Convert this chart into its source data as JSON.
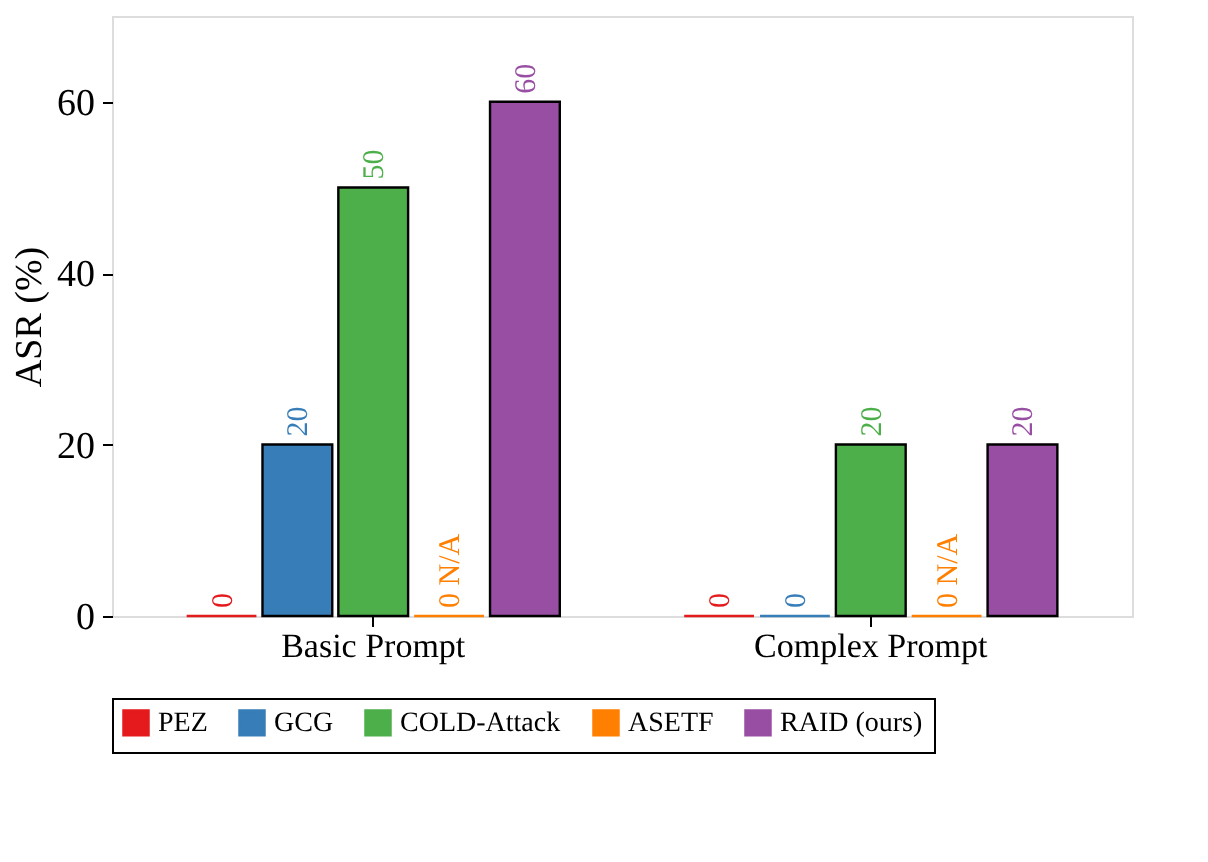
{
  "chart_data": {
    "type": "bar",
    "ylabel": "ASR (%)",
    "categories": [
      "Basic Prompt",
      "Complex Prompt"
    ],
    "series": [
      {
        "name": "PEZ",
        "color": "#e41a1c",
        "values": [
          0,
          0
        ],
        "value_labels": [
          "0",
          "0"
        ]
      },
      {
        "name": "GCG",
        "color": "#377eb8",
        "values": [
          20,
          0
        ],
        "value_labels": [
          "20",
          "0"
        ]
      },
      {
        "name": "COLD-Attack",
        "color": "#4daf4a",
        "values": [
          50,
          20
        ],
        "value_labels": [
          "50",
          "20"
        ]
      },
      {
        "name": "ASETF",
        "color": "#ff7f00",
        "values": [
          0,
          0
        ],
        "value_labels": [
          "0 N/A",
          "0 N/A"
        ]
      },
      {
        "name": "RAID (ours)",
        "color": "#984ea3",
        "values": [
          60,
          20
        ],
        "value_labels": [
          "60",
          "20"
        ]
      }
    ],
    "ylim": [
      0,
      70
    ],
    "yticks": [
      0,
      20,
      40,
      60
    ],
    "grid": false,
    "legend": "bottom"
  }
}
